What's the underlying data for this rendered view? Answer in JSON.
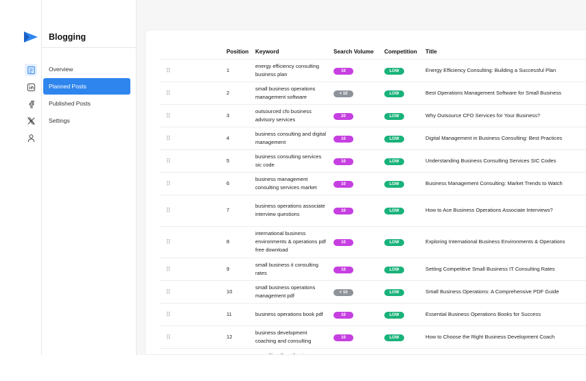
{
  "app": {
    "section_title": "Blogging"
  },
  "rail": {
    "icons": [
      "logo-icon",
      "document-icon",
      "linkedin-icon",
      "facebook-icon",
      "x-icon",
      "user-icon"
    ]
  },
  "sidebar": {
    "items": [
      {
        "label": "Overview",
        "active": false
      },
      {
        "label": "Planned Posts",
        "active": true
      },
      {
        "label": "Published Posts",
        "active": false
      },
      {
        "label": "Settings",
        "active": false
      }
    ]
  },
  "table": {
    "headers": {
      "position": "Position",
      "keyword": "Keyword",
      "search_volume": "Search Volume",
      "competition": "Competition",
      "title": "Title"
    },
    "drag_glyph": "⠿",
    "rows": [
      {
        "position": "1",
        "keyword": "energy efficiency consulting business plan",
        "volume": "10",
        "competition": "LOW",
        "title": "Energy Efficiency Consulting: Building a Successful Plan"
      },
      {
        "position": "2",
        "keyword": "small business operations management software",
        "volume": "< 10",
        "competition": "LOW",
        "title": "Best Operations Management Software for Small Business"
      },
      {
        "position": "3",
        "keyword": "outsourced cfo business advisory services",
        "volume": "20",
        "competition": "LOW",
        "title": "Why Outsource CFO Services for Your Business?"
      },
      {
        "position": "4",
        "keyword": "business consulting and digital management",
        "volume": "10",
        "competition": "LOW",
        "title": "Digital Management in Business Consulting: Best Practices"
      },
      {
        "position": "5",
        "keyword": "business consulting services sic code",
        "volume": "10",
        "competition": "LOW",
        "title": "Understanding Business Consulting Services SIC Codes"
      },
      {
        "position": "6",
        "keyword": "business management consulting services market",
        "volume": "10",
        "competition": "LOW",
        "title": "Business Management Consulting: Market Trends to Watch"
      },
      {
        "position": "7",
        "keyword": "business operations associate interview questions",
        "volume": "10",
        "competition": "LOW",
        "title": "How to Ace Business Operations Associate Interviews?"
      },
      {
        "position": "8",
        "keyword": "international business environments & operations pdf free download",
        "volume": "10",
        "competition": "LOW",
        "title": "Exploring International Business Environments & Operations"
      },
      {
        "position": "9",
        "keyword": "small business it consulting rates",
        "volume": "10",
        "competition": "LOW",
        "title": "Setting Competitive Small Business IT Consulting Rates"
      },
      {
        "position": "10",
        "keyword": "small business operations management pdf",
        "volume": "< 10",
        "competition": "LOW",
        "title": "Small Business Operations: A Comprehensive PDF Guide"
      },
      {
        "position": "11",
        "keyword": "business operations book pdf",
        "volume": "10",
        "competition": "LOW",
        "title": "Essential Business Operations Books for Success"
      },
      {
        "position": "12",
        "keyword": "business development coaching and consulting",
        "volume": "10",
        "competition": "LOW",
        "title": "How to Choose the Right Business Development Coach"
      },
      {
        "position": "",
        "keyword": "consulting three business",
        "volume": "",
        "competition": "",
        "title": ""
      }
    ]
  },
  "colors": {
    "accent": "#2f85ee",
    "volume_badge": "#c63fe0",
    "volume_badge_low": "#8e939a",
    "competition_badge": "#19b27a"
  }
}
